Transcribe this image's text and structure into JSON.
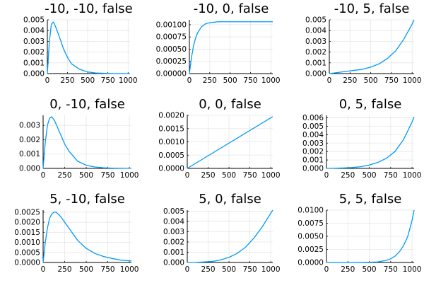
{
  "style": {
    "series_color": "#009AFA",
    "grid_color": "#e6e6e6",
    "axis_color": "#000000"
  },
  "chart_data": [
    {
      "type": "line",
      "title": "-10, -10, false",
      "xlim": [
        0,
        1024
      ],
      "ylim": [
        0,
        0.005
      ],
      "x_ticks": [
        0,
        250,
        500,
        750,
        1000
      ],
      "x_tick_labels": [
        "0",
        "250",
        "500",
        "750",
        "1000"
      ],
      "y_ticks": [
        0,
        0.001,
        0.002,
        0.003,
        0.004,
        0.005
      ],
      "y_tick_labels": [
        "0.000",
        "0.001",
        "0.002",
        "0.003",
        "0.004",
        "0.005"
      ],
      "grid": true,
      "legend": "none",
      "series": [
        {
          "x": [
            0,
            25,
            50,
            75,
            100,
            150,
            200,
            250,
            300,
            400,
            500,
            600,
            700,
            800,
            1024
          ],
          "y": [
            0,
            0.003,
            0.0046,
            0.0048,
            0.0044,
            0.0034,
            0.0023,
            0.0015,
            0.0009,
            0.0004,
            0.00015,
            6e-05,
            3e-05,
            1e-05,
            0
          ]
        }
      ]
    },
    {
      "type": "line",
      "title": "-10, 0, false",
      "xlim": [
        0,
        1024
      ],
      "ylim": [
        0,
        0.0011
      ],
      "x_ticks": [
        0,
        250,
        500,
        750,
        1000
      ],
      "x_tick_labels": [
        "0",
        "250",
        "500",
        "750",
        "1000"
      ],
      "y_ticks": [
        0,
        0.00025,
        0.0005,
        0.00075,
        0.001
      ],
      "y_tick_labels": [
        "0.00000",
        "0.00025",
        "0.00050",
        "0.00075",
        "0.00100"
      ],
      "grid": true,
      "legend": "none",
      "series": [
        {
          "x": [
            0,
            25,
            50,
            75,
            100,
            150,
            200,
            250,
            300,
            350,
            400,
            500,
            600,
            800,
            1024
          ],
          "y": [
            0,
            0.00032,
            0.00056,
            0.00072,
            0.00083,
            0.00096,
            0.00102,
            0.00104,
            0.00105,
            0.00106,
            0.00106,
            0.00106,
            0.00106,
            0.00106,
            0.00106
          ]
        }
      ]
    },
    {
      "type": "line",
      "title": "-10, 5, false",
      "xlim": [
        0,
        1024
      ],
      "ylim": [
        0,
        0.005
      ],
      "x_ticks": [
        0,
        250,
        500,
        750,
        1000
      ],
      "x_tick_labels": [
        "0",
        "250",
        "500",
        "750",
        "1000"
      ],
      "y_ticks": [
        0,
        0.001,
        0.002,
        0.003,
        0.004,
        0.005
      ],
      "y_tick_labels": [
        "0.000",
        "0.001",
        "0.002",
        "0.003",
        "0.004",
        "0.005"
      ],
      "grid": true,
      "legend": "none",
      "series": [
        {
          "x": [
            0,
            100,
            200,
            300,
            400,
            500,
            600,
            700,
            800,
            900,
            1000,
            1024
          ],
          "y": [
            0,
            0.0001,
            0.0002,
            0.0003,
            0.0004,
            0.0006,
            0.0009,
            0.0014,
            0.0021,
            0.0032,
            0.0046,
            0.005
          ]
        }
      ]
    },
    {
      "type": "line",
      "title": "0, -10, false",
      "xlim": [
        0,
        1024
      ],
      "ylim": [
        0,
        0.0037
      ],
      "x_ticks": [
        0,
        250,
        500,
        750,
        1000
      ],
      "x_tick_labels": [
        "0",
        "250",
        "500",
        "750",
        "1000"
      ],
      "y_ticks": [
        0,
        0.001,
        0.002,
        0.003
      ],
      "y_tick_labels": [
        "0.000",
        "0.001",
        "0.002",
        "0.003"
      ],
      "grid": true,
      "legend": "none",
      "series": [
        {
          "x": [
            0,
            25,
            50,
            75,
            100,
            125,
            150,
            200,
            250,
            300,
            400,
            500,
            600,
            700,
            800,
            1024
          ],
          "y": [
            0,
            0.0018,
            0.003,
            0.0035,
            0.0036,
            0.0034,
            0.0031,
            0.0024,
            0.0017,
            0.0012,
            0.0005,
            0.00022,
            0.0001,
            4e-05,
            2e-05,
            0
          ]
        }
      ]
    },
    {
      "type": "line",
      "title": "0, 0, false",
      "xlim": [
        0,
        1024
      ],
      "ylim": [
        0,
        0.002
      ],
      "x_ticks": [
        0,
        250,
        500,
        750,
        1000
      ],
      "x_tick_labels": [
        "0",
        "250",
        "500",
        "750",
        "1000"
      ],
      "y_ticks": [
        0,
        0.0005,
        0.001,
        0.0015,
        0.002
      ],
      "y_tick_labels": [
        "0.0000",
        "0.0005",
        "0.0010",
        "0.0015",
        "0.0020"
      ],
      "grid": true,
      "legend": "none",
      "series": [
        {
          "x": [
            0,
            1024
          ],
          "y": [
            0,
            0.00195
          ]
        }
      ]
    },
    {
      "type": "line",
      "title": "0, 5, false",
      "xlim": [
        0,
        1024
      ],
      "ylim": [
        0,
        0.0063
      ],
      "x_ticks": [
        0,
        250,
        500,
        750,
        1000
      ],
      "x_tick_labels": [
        "0",
        "250",
        "500",
        "750",
        "1000"
      ],
      "y_ticks": [
        0,
        0.001,
        0.002,
        0.003,
        0.004,
        0.005,
        0.006
      ],
      "y_tick_labels": [
        "0.000",
        "0.001",
        "0.002",
        "0.003",
        "0.004",
        "0.005",
        "0.006"
      ],
      "grid": true,
      "legend": "none",
      "series": [
        {
          "x": [
            0,
            100,
            200,
            300,
            400,
            500,
            600,
            700,
            800,
            900,
            1000,
            1024
          ],
          "y": [
            0,
            2e-05,
            5e-05,
            0.0001,
            0.0002,
            0.0004,
            0.0007,
            0.0012,
            0.002,
            0.0034,
            0.0055,
            0.0061
          ]
        }
      ]
    },
    {
      "type": "line",
      "title": "5, -10, false",
      "xlim": [
        0,
        1024
      ],
      "ylim": [
        0,
        0.0026
      ],
      "x_ticks": [
        0,
        250,
        500,
        750,
        1000
      ],
      "x_tick_labels": [
        "0",
        "250",
        "500",
        "750",
        "1000"
      ],
      "y_ticks": [
        0,
        0.0005,
        0.001,
        0.0015,
        0.002,
        0.0025
      ],
      "y_tick_labels": [
        "0.0000",
        "0.0005",
        "0.0010",
        "0.0015",
        "0.0020",
        "0.0025"
      ],
      "grid": true,
      "legend": "none",
      "series": [
        {
          "x": [
            0,
            25,
            50,
            75,
            100,
            125,
            150,
            200,
            250,
            300,
            400,
            500,
            600,
            700,
            800,
            900,
            1024
          ],
          "y": [
            0,
            0.001,
            0.0017,
            0.0022,
            0.0024,
            0.0025,
            0.0025,
            0.0023,
            0.002,
            0.0017,
            0.0011,
            0.0007,
            0.00045,
            0.0003,
            0.0002,
            0.00012,
            8e-05
          ]
        }
      ]
    },
    {
      "type": "line",
      "title": "5, 0, false",
      "xlim": [
        0,
        1024
      ],
      "ylim": [
        0,
        0.0051
      ],
      "x_ticks": [
        0,
        250,
        500,
        750,
        1000
      ],
      "x_tick_labels": [
        "0",
        "250",
        "500",
        "750",
        "1000"
      ],
      "y_ticks": [
        0,
        0.001,
        0.002,
        0.003,
        0.004,
        0.005
      ],
      "y_tick_labels": [
        "0.000",
        "0.001",
        "0.002",
        "0.003",
        "0.004",
        "0.005"
      ],
      "grid": true,
      "legend": "none",
      "series": [
        {
          "x": [
            0,
            100,
            200,
            300,
            400,
            500,
            600,
            700,
            800,
            900,
            1000,
            1024
          ],
          "y": [
            0,
            1e-05,
            5e-05,
            0.0001,
            0.00025,
            0.0005,
            0.0009,
            0.0015,
            0.0024,
            0.0035,
            0.0048,
            0.0051
          ]
        }
      ]
    },
    {
      "type": "line",
      "title": "5, 5, false",
      "xlim": [
        0,
        1024
      ],
      "ylim": [
        0,
        0.01
      ],
      "x_ticks": [
        0,
        250,
        500,
        750,
        1000
      ],
      "x_tick_labels": [
        "0",
        "250",
        "500",
        "750",
        "1000"
      ],
      "y_ticks": [
        0,
        0.0025,
        0.005,
        0.0075,
        0.01
      ],
      "y_tick_labels": [
        "0.0000",
        "0.0025",
        "0.0050",
        "0.0075",
        "0.0100"
      ],
      "grid": true,
      "legend": "none",
      "series": [
        {
          "x": [
            0,
            300,
            500,
            600,
            700,
            750,
            800,
            850,
            900,
            950,
            1000,
            1024
          ],
          "y": [
            0,
            0,
            5e-05,
            0.0001,
            0.0004,
            0.0007,
            0.0012,
            0.002,
            0.0032,
            0.005,
            0.008,
            0.01
          ]
        }
      ]
    }
  ]
}
